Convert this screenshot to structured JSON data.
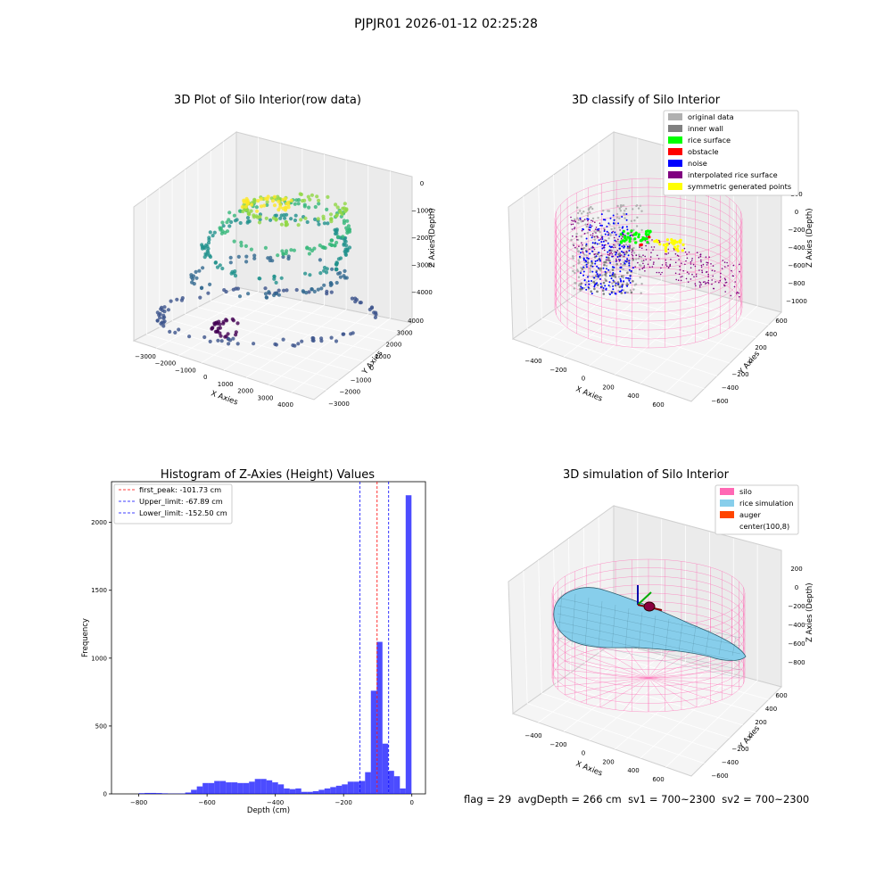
{
  "suptitle": "PJPJR01 2026-01-12 02:25:28",
  "footer": {
    "flag": "flag = 29",
    "avg_depth": "avgDepth = 266 cm",
    "sv1": "sv1 = 700~2300",
    "sv2": "sv2 = 700~2300"
  },
  "colors": {
    "silo": "#ff69b4",
    "rice": "#87ceeb",
    "auger": "#ff4500",
    "hist": "#0000ff",
    "first_peak_line": "#ff0000",
    "limit_line": "#0000ff"
  },
  "chart_data": [
    {
      "type": "scatter3d",
      "title": "3D Plot of Silo Interior(row data)",
      "xlabel": "X Axies",
      "ylabel": "Y Axies",
      "zlabel": "Z Axies (Depth)",
      "xticks": [
        "−3000",
        "−2000",
        "−1000",
        "0",
        "1000",
        "2000",
        "3000",
        "4000"
      ],
      "yticks": [
        "−3000",
        "−2000",
        "−1000",
        "0",
        "1000",
        "2000",
        "3000",
        "4000"
      ],
      "zticks": [
        "0",
        "−1000",
        "−2000",
        "−3000",
        "−4000"
      ],
      "colormap": "viridis"
    },
    {
      "type": "scatter3d",
      "title": "3D classify of Silo Interior",
      "xlabel": "X Axies",
      "ylabel": "Y Axies",
      "zlabel": "Z Axies (Depth)",
      "xticks": [
        "−400",
        "−200",
        "0",
        "200",
        "400",
        "600"
      ],
      "yticks": [
        "−600",
        "−400",
        "−200",
        "0",
        "200",
        "400",
        "600"
      ],
      "zticks": [
        "200",
        "0",
        "−200",
        "−400",
        "−600",
        "−800",
        "−1000"
      ],
      "legend": [
        {
          "label": "original data",
          "color": "#b0b0b0"
        },
        {
          "label": "inner wall",
          "color": "#808080"
        },
        {
          "label": "rice surface",
          "color": "#00ff00"
        },
        {
          "label": "obstacle",
          "color": "#ff0000"
        },
        {
          "label": "noise",
          "color": "#0000ff"
        },
        {
          "label": "interpolated rice surface",
          "color": "#800080"
        },
        {
          "label": "symmetric generated points",
          "color": "#ffff00"
        }
      ],
      "legend_position": "upper right"
    },
    {
      "type": "bar",
      "title": "Histogram of Z-Axies (Height) Values",
      "xlabel": "Depth (cm)",
      "ylabel": "Frequency",
      "xlim": [
        -880,
        40
      ],
      "ylim": [
        0,
        2300
      ],
      "xticks": [
        -800,
        -600,
        -400,
        -200,
        0
      ],
      "xtick_labels": [
        "−800",
        "−600",
        "−400",
        "−200",
        "0"
      ],
      "yticks": [
        0,
        500,
        1000,
        1500,
        2000
      ],
      "bin_width": 17,
      "bins": [
        [
          -800,
          5
        ],
        [
          -783,
          7
        ],
        [
          -766,
          7
        ],
        [
          -749,
          6
        ],
        [
          -732,
          4
        ],
        [
          -715,
          2
        ],
        [
          -698,
          2
        ],
        [
          -681,
          3
        ],
        [
          -664,
          10
        ],
        [
          -647,
          30
        ],
        [
          -630,
          55
        ],
        [
          -613,
          80
        ],
        [
          -596,
          80
        ],
        [
          -579,
          95
        ],
        [
          -562,
          95
        ],
        [
          -545,
          85
        ],
        [
          -528,
          85
        ],
        [
          -511,
          80
        ],
        [
          -494,
          80
        ],
        [
          -477,
          90
        ],
        [
          -460,
          110
        ],
        [
          -443,
          110
        ],
        [
          -426,
          100
        ],
        [
          -409,
          85
        ],
        [
          -392,
          70
        ],
        [
          -375,
          40
        ],
        [
          -358,
          35
        ],
        [
          -341,
          40
        ],
        [
          -324,
          15
        ],
        [
          -307,
          15
        ],
        [
          -290,
          20
        ],
        [
          -273,
          30
        ],
        [
          -256,
          40
        ],
        [
          -239,
          50
        ],
        [
          -222,
          60
        ],
        [
          -205,
          70
        ],
        [
          -188,
          90
        ],
        [
          -171,
          90
        ],
        [
          -154,
          95
        ],
        [
          -137,
          160
        ],
        [
          -120,
          760
        ],
        [
          -103,
          1120
        ],
        [
          -86,
          370
        ],
        [
          -69,
          170
        ],
        [
          -52,
          130
        ],
        [
          -35,
          40
        ],
        [
          -18,
          2200
        ]
      ],
      "vlines": [
        {
          "label": "first_peak: -101.73 cm",
          "x": -101.73,
          "color": "#ff0000"
        },
        {
          "label": "Upper_limit: -67.89 cm",
          "x": -67.89,
          "color": "#0000ff"
        },
        {
          "label": "Lower_limit: -152.50 cm",
          "x": -152.5,
          "color": "#0000ff"
        }
      ],
      "legend_position": "upper left"
    },
    {
      "type": "surface3d",
      "title": "3D simulation of Silo Interior",
      "xlabel": "X Axies",
      "ylabel": "Y Axies",
      "zlabel": "Z Axies (Depth)",
      "xticks": [
        "−400",
        "−200",
        "0",
        "200",
        "400",
        "600"
      ],
      "yticks": [
        "−600",
        "−400",
        "−200",
        "0",
        "200",
        "400",
        "600"
      ],
      "zticks": [
        "200",
        "0",
        "−200",
        "−400",
        "−600",
        "−800"
      ],
      "legend": [
        {
          "label": "silo",
          "color": "#ff69b4"
        },
        {
          "label": "rice simulation",
          "color": "#87ceeb"
        },
        {
          "label": "auger",
          "color": "#ff4500"
        },
        {
          "label": "center(100,8)",
          "color": "#ffffff"
        }
      ],
      "legend_position": "upper right"
    }
  ]
}
